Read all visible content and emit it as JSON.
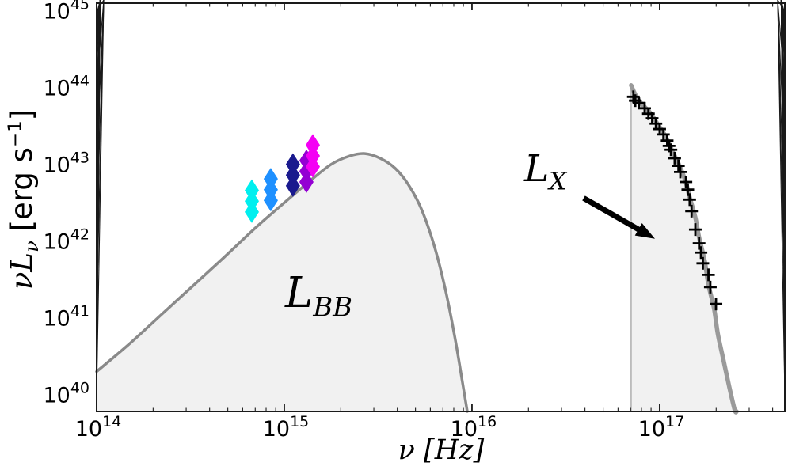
{
  "labels": {
    "y_axis": {
      "math": "νL",
      "sub": "ν",
      "unit_open": " [erg s",
      "unit_sup": "−1",
      "unit_close": "]"
    },
    "x_axis": {
      "math": "ν [Hz]"
    },
    "bb": {
      "main": "L",
      "sub": "BB"
    },
    "lx": {
      "main": "L",
      "sub": "X"
    }
  },
  "chart_data": {
    "type": "line",
    "title": "",
    "xlabel": "ν [Hz]",
    "ylabel": "νLν [erg s−1]",
    "x_scale": "log",
    "y_scale": "log",
    "xlim_log10": [
      14.0,
      17.667
    ],
    "ylim_log10": [
      39.78,
      45.1
    ],
    "x_major_ticks_log10": [
      14,
      15,
      16,
      17
    ],
    "y_major_ticks_log10": [
      40,
      41,
      42,
      43,
      44,
      45
    ],
    "tick_base": "10",
    "axis_color": "#1a1a1a",
    "background": "#ffffff",
    "grid": false,
    "legend": false,
    "series": [
      {
        "name": "blackbody-model",
        "label": "L_BB",
        "role": "model-curve-with-fill",
        "color": "#8a8a8a",
        "fill": "#f1f1f1",
        "line_width": 3.5,
        "points_log10": [
          [
            14.0,
            40.3
          ],
          [
            14.17,
            40.65
          ],
          [
            14.34,
            41.03
          ],
          [
            14.51,
            41.41
          ],
          [
            14.68,
            41.79
          ],
          [
            14.85,
            42.18
          ],
          [
            15.0,
            42.5
          ],
          [
            15.13,
            42.77
          ],
          [
            15.25,
            43.0
          ],
          [
            15.35,
            43.11
          ],
          [
            15.43,
            43.14
          ],
          [
            15.51,
            43.08
          ],
          [
            15.59,
            42.95
          ],
          [
            15.66,
            42.74
          ],
          [
            15.73,
            42.42
          ],
          [
            15.8,
            41.93
          ],
          [
            15.86,
            41.35
          ],
          [
            15.91,
            40.73
          ],
          [
            15.95,
            40.15
          ],
          [
            15.975,
            39.78
          ]
        ]
      },
      {
        "name": "xray-model",
        "label": "L_X",
        "role": "model-curve-with-fill",
        "color": "#9a9a9a",
        "fill": "#f1f1f1",
        "line_width": 5.5,
        "left_edge_log10_x": 16.848,
        "edge_color": "#b3b3b3",
        "edge_width": 1.6,
        "points_log10": [
          [
            16.848,
            44.03
          ],
          [
            16.87,
            43.91
          ],
          [
            16.9,
            43.8
          ],
          [
            16.95,
            43.67
          ],
          [
            16.99,
            43.52
          ],
          [
            17.03,
            43.37
          ],
          [
            17.07,
            43.16
          ],
          [
            17.11,
            42.96
          ],
          [
            17.14,
            42.76
          ],
          [
            17.16,
            42.57
          ],
          [
            17.19,
            42.31
          ],
          [
            17.21,
            42.05
          ],
          [
            17.24,
            41.74
          ],
          [
            17.26,
            41.43
          ],
          [
            17.29,
            41.12
          ],
          [
            17.31,
            40.79
          ],
          [
            17.34,
            40.45
          ],
          [
            17.37,
            40.11
          ],
          [
            17.4,
            39.8
          ],
          [
            17.41,
            39.78
          ]
        ]
      },
      {
        "name": "uvoir-photometry",
        "role": "markers",
        "marker": "diamond",
        "marker_half_width": 9,
        "marker_half_height": 14,
        "clusters": [
          {
            "name": "cyan-band",
            "color": "#00EFEF",
            "log10_nu": 14.827,
            "log10_nuLnu": [
              42.38,
              42.52,
              42.66
            ]
          },
          {
            "name": "blue-band",
            "color": "#1E90FF",
            "log10_nu": 14.928,
            "log10_nuLnu": [
              42.53,
              42.67,
              42.81
            ]
          },
          {
            "name": "navy-band",
            "color": "#1A1A8E",
            "log10_nu": 15.046,
            "log10_nuLnu": [
              42.72,
              42.86,
              43.0
            ]
          },
          {
            "name": "purple-band",
            "color": "#9400D3",
            "log10_nu": 15.118,
            "log10_nuLnu": [
              42.77,
              42.91,
              43.05
            ]
          },
          {
            "name": "magenta-band",
            "color": "#F400F4",
            "log10_nu": 15.152,
            "log10_nuLnu": [
              42.97,
              43.11,
              43.25
            ]
          }
        ]
      },
      {
        "name": "xray-photometry",
        "role": "markers",
        "marker": "plus",
        "marker_arm": 8,
        "marker_stroke": 2.8,
        "color": "#000000",
        "points_log10": [
          [
            16.86,
            43.88
          ],
          [
            16.87,
            43.83
          ],
          [
            16.89,
            43.8
          ],
          [
            16.92,
            43.73
          ],
          [
            16.94,
            43.66
          ],
          [
            16.96,
            43.6
          ],
          [
            16.98,
            43.53
          ],
          [
            17.0,
            43.46
          ],
          [
            17.02,
            43.39
          ],
          [
            17.04,
            43.31
          ],
          [
            17.05,
            43.24
          ],
          [
            17.06,
            43.19
          ],
          [
            17.08,
            43.08
          ],
          [
            17.1,
            42.98
          ],
          [
            17.11,
            42.9
          ],
          [
            17.14,
            42.77
          ],
          [
            17.15,
            42.67
          ],
          [
            17.16,
            42.54
          ],
          [
            17.17,
            42.39
          ],
          [
            17.19,
            42.15
          ],
          [
            17.21,
            41.97
          ],
          [
            17.22,
            41.85
          ],
          [
            17.23,
            41.71
          ],
          [
            17.26,
            41.56
          ],
          [
            17.27,
            41.4
          ],
          [
            17.3,
            41.18
          ]
        ]
      }
    ],
    "annotations": {
      "bb_text": "L_BB",
      "lx_text": "L_X",
      "lx_arrow": {
        "from_log10": [
          16.595,
          42.56
        ],
        "to_log10": [
          16.975,
          42.03
        ],
        "color": "#000000",
        "line_width": 7,
        "head_length": 24,
        "head_half_width": 9
      }
    }
  }
}
